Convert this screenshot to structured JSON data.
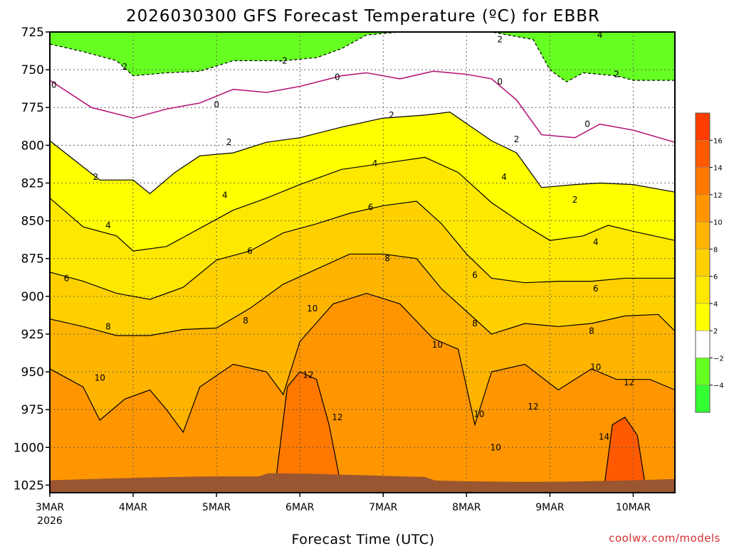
{
  "chart_data": {
    "type": "heatmap",
    "title": "2026030300 GFS Forecast Temperature (ºC) for EBBR",
    "xlabel": "Forecast Time (UTC)",
    "ylabel": "",
    "credit": "coolwx.com/models",
    "y_axis": {
      "unit": "hPa",
      "reversed": true,
      "range": [
        725,
        1030
      ],
      "ticks": [
        "725",
        "750",
        "775",
        "800",
        "825",
        "850",
        "875",
        "900",
        "925",
        "950",
        "975",
        "1000",
        "1025"
      ]
    },
    "x_axis": {
      "range_days_from_start": [
        0,
        7.5
      ],
      "ticks": [
        {
          "label": "3MAR",
          "sub": "2026",
          "day": 0
        },
        {
          "label": "4MAR",
          "sub": "",
          "day": 1
        },
        {
          "label": "5MAR",
          "sub": "",
          "day": 2
        },
        {
          "label": "6MAR",
          "sub": "",
          "day": 3
        },
        {
          "label": "7MAR",
          "sub": "",
          "day": 4
        },
        {
          "label": "8MAR",
          "sub": "",
          "day": 5
        },
        {
          "label": "9MAR",
          "sub": "",
          "day": 6
        },
        {
          "label": "10MAR",
          "sub": "",
          "day": 7
        }
      ]
    },
    "colorbar": {
      "bins": [
        {
          "from": -6,
          "to": -4,
          "color": "#33ff33"
        },
        {
          "from": -4,
          "to": -2,
          "color": "#66ff22"
        },
        {
          "from": -2,
          "to": 2,
          "color": "#ffffff"
        },
        {
          "from": 2,
          "to": 4,
          "color": "#ffff00"
        },
        {
          "from": 4,
          "to": 6,
          "color": "#ffe800"
        },
        {
          "from": 6,
          "to": 8,
          "color": "#ffd000"
        },
        {
          "from": 8,
          "to": 10,
          "color": "#ffb400"
        },
        {
          "from": 10,
          "to": 12,
          "color": "#ff9600"
        },
        {
          "from": 12,
          "to": 14,
          "color": "#ff7800"
        },
        {
          "from": 14,
          "to": 16,
          "color": "#ff5a00"
        },
        {
          "from": 16,
          "to": 18,
          "color": "#ff3c00"
        }
      ],
      "tick_labels": [
        "16",
        "14",
        "12",
        "10",
        "8",
        "6",
        "4",
        "2",
        "−2",
        "−4"
      ]
    },
    "contour_levels": [
      -4,
      -2,
      0,
      2,
      4,
      6,
      8,
      10,
      12,
      14
    ],
    "isotherms": [
      {
        "level": "-2",
        "points": [
          [
            0,
            733
          ],
          [
            0.4,
            738
          ],
          [
            0.8,
            744
          ],
          [
            1.0,
            754
          ],
          [
            1.4,
            752
          ],
          [
            1.8,
            751
          ],
          [
            2.2,
            744
          ],
          [
            2.6,
            744
          ],
          [
            2.8,
            744
          ],
          [
            3.2,
            742
          ],
          [
            3.5,
            736
          ],
          [
            3.8,
            727
          ],
          [
            4.2,
            725
          ],
          [
            5.0,
            725
          ],
          [
            5.3,
            725
          ],
          [
            5.8,
            730
          ],
          [
            6.0,
            750
          ],
          [
            6.2,
            758
          ],
          [
            6.4,
            752
          ],
          [
            6.8,
            754
          ],
          [
            7.0,
            757
          ],
          [
            7.4,
            757
          ],
          [
            7.5,
            757
          ]
        ]
      },
      {
        "level": "0",
        "points": [
          [
            0,
            757
          ],
          [
            0.5,
            775
          ],
          [
            1.0,
            782
          ],
          [
            1.4,
            776
          ],
          [
            1.8,
            772
          ],
          [
            2.2,
            763
          ],
          [
            2.6,
            765
          ],
          [
            3.0,
            761
          ],
          [
            3.5,
            754
          ],
          [
            3.8,
            752
          ],
          [
            4.2,
            756
          ],
          [
            4.6,
            751
          ],
          [
            5.0,
            753
          ],
          [
            5.3,
            756
          ],
          [
            5.6,
            770
          ],
          [
            5.9,
            793
          ],
          [
            6.3,
            795
          ],
          [
            6.6,
            786
          ],
          [
            7.0,
            790
          ],
          [
            7.5,
            798
          ]
        ]
      },
      {
        "level": "2",
        "points": [
          [
            0,
            797
          ],
          [
            0.3,
            810
          ],
          [
            0.6,
            823
          ],
          [
            1.0,
            823
          ],
          [
            1.2,
            832
          ],
          [
            1.5,
            818
          ],
          [
            1.8,
            807
          ],
          [
            2.2,
            805
          ],
          [
            2.6,
            798
          ],
          [
            3.0,
            795
          ],
          [
            3.5,
            788
          ],
          [
            4.0,
            782
          ],
          [
            4.5,
            780
          ],
          [
            4.8,
            778
          ],
          [
            5.3,
            797
          ],
          [
            5.6,
            805
          ],
          [
            5.9,
            828
          ],
          [
            6.3,
            826
          ],
          [
            6.6,
            825
          ],
          [
            7.0,
            826
          ],
          [
            7.5,
            831
          ]
        ]
      },
      {
        "level": "4",
        "points": [
          [
            0,
            835
          ],
          [
            0.4,
            854
          ],
          [
            0.8,
            860
          ],
          [
            1.0,
            870
          ],
          [
            1.4,
            867
          ],
          [
            1.8,
            855
          ],
          [
            2.2,
            843
          ],
          [
            2.6,
            835
          ],
          [
            3.0,
            826
          ],
          [
            3.5,
            816
          ],
          [
            4.0,
            812
          ],
          [
            4.5,
            808
          ],
          [
            4.9,
            818
          ],
          [
            5.3,
            838
          ],
          [
            5.7,
            853
          ],
          [
            6.0,
            863
          ],
          [
            6.4,
            860
          ],
          [
            6.7,
            853
          ],
          [
            7.0,
            857
          ],
          [
            7.5,
            863
          ]
        ]
      },
      {
        "level": "6",
        "points": [
          [
            0,
            884
          ],
          [
            0.4,
            890
          ],
          [
            0.8,
            898
          ],
          [
            1.2,
            902
          ],
          [
            1.6,
            894
          ],
          [
            2.0,
            876
          ],
          [
            2.4,
            870
          ],
          [
            2.8,
            858
          ],
          [
            3.2,
            852
          ],
          [
            3.6,
            845
          ],
          [
            4.0,
            840
          ],
          [
            4.4,
            837
          ],
          [
            4.7,
            852
          ],
          [
            5.0,
            872
          ],
          [
            5.3,
            888
          ],
          [
            5.7,
            891
          ],
          [
            6.1,
            890
          ],
          [
            6.5,
            890
          ],
          [
            6.9,
            888
          ],
          [
            7.3,
            888
          ],
          [
            7.5,
            888
          ]
        ]
      },
      {
        "level": "8",
        "points": [
          [
            0,
            915
          ],
          [
            0.4,
            920
          ],
          [
            0.8,
            926
          ],
          [
            1.2,
            926
          ],
          [
            1.6,
            922
          ],
          [
            2.0,
            921
          ],
          [
            2.4,
            908
          ],
          [
            2.8,
            892
          ],
          [
            3.2,
            882
          ],
          [
            3.6,
            872
          ],
          [
            4.0,
            872
          ],
          [
            4.4,
            875
          ],
          [
            4.7,
            895
          ],
          [
            5.0,
            910
          ],
          [
            5.3,
            925
          ],
          [
            5.7,
            918
          ],
          [
            6.1,
            920
          ],
          [
            6.5,
            918
          ],
          [
            6.9,
            913
          ],
          [
            7.3,
            912
          ],
          [
            7.5,
            923
          ]
        ]
      },
      {
        "level": "10",
        "points": [
          [
            0,
            948
          ],
          [
            0.4,
            960
          ],
          [
            0.6,
            982
          ],
          [
            0.9,
            968
          ],
          [
            1.2,
            962
          ],
          [
            1.4,
            975
          ],
          [
            1.6,
            990
          ],
          [
            1.8,
            960
          ],
          [
            2.2,
            945
          ],
          [
            2.6,
            950
          ],
          [
            2.8,
            965
          ],
          [
            3.0,
            930
          ],
          [
            3.4,
            905
          ],
          [
            3.8,
            898
          ],
          [
            4.2,
            905
          ],
          [
            4.6,
            928
          ],
          [
            4.9,
            935
          ],
          [
            5.1,
            985
          ],
          [
            5.3,
            950
          ],
          [
            5.7,
            945
          ],
          [
            6.1,
            962
          ],
          [
            6.5,
            948
          ],
          [
            6.8,
            955
          ],
          [
            7.2,
            955
          ],
          [
            7.5,
            962
          ]
        ]
      },
      {
        "level": "12",
        "points": [
          [
            2.7,
            1027
          ],
          [
            2.85,
            960
          ],
          [
            3.0,
            950
          ],
          [
            3.2,
            955
          ],
          [
            3.35,
            985
          ],
          [
            3.5,
            1027
          ]
        ]
      },
      {
        "level": "14",
        "points": [
          [
            6.65,
            1027
          ],
          [
            6.75,
            985
          ],
          [
            6.9,
            980
          ],
          [
            7.05,
            992
          ],
          [
            7.15,
            1027
          ]
        ]
      }
    ],
    "contour_labels": [
      {
        "text": "-2",
        "day": 2.8,
        "hpa": 744
      },
      {
        "text": "2",
        "day": 5.4,
        "hpa": 730
      },
      {
        "text": "4",
        "day": 6.6,
        "hpa": 727
      },
      {
        "text": "2",
        "day": 0.9,
        "hpa": 748
      },
      {
        "text": "2",
        "day": 6.8,
        "hpa": 753
      },
      {
        "text": "0",
        "day": 0.05,
        "hpa": 760
      },
      {
        "text": "0",
        "day": 2.0,
        "hpa": 773
      },
      {
        "text": "0",
        "day": 3.45,
        "hpa": 755
      },
      {
        "text": "0",
        "day": 5.4,
        "hpa": 758
      },
      {
        "text": "0",
        "day": 6.45,
        "hpa": 786
      },
      {
        "text": "2",
        "day": 0.55,
        "hpa": 821
      },
      {
        "text": "2",
        "day": 2.15,
        "hpa": 798
      },
      {
        "text": "2",
        "day": 4.1,
        "hpa": 780
      },
      {
        "text": "2",
        "day": 6.3,
        "hpa": 836
      },
      {
        "text": "2",
        "day": 5.6,
        "hpa": 796
      },
      {
        "text": "4",
        "day": 0.7,
        "hpa": 853
      },
      {
        "text": "4",
        "day": 2.1,
        "hpa": 833
      },
      {
        "text": "4",
        "day": 3.9,
        "hpa": 812
      },
      {
        "text": "4",
        "day": 5.45,
        "hpa": 821
      },
      {
        "text": "4",
        "day": 6.55,
        "hpa": 864
      },
      {
        "text": "6",
        "day": 0.2,
        "hpa": 888
      },
      {
        "text": "6",
        "day": 2.4,
        "hpa": 870
      },
      {
        "text": "6",
        "day": 3.85,
        "hpa": 841
      },
      {
        "text": "6",
        "day": 5.1,
        "hpa": 886
      },
      {
        "text": "6",
        "day": 6.55,
        "hpa": 895
      },
      {
        "text": "8",
        "day": 0.7,
        "hpa": 920
      },
      {
        "text": "8",
        "day": 2.35,
        "hpa": 916
      },
      {
        "text": "8",
        "day": 4.05,
        "hpa": 875
      },
      {
        "text": "8",
        "day": 5.1,
        "hpa": 918
      },
      {
        "text": "8",
        "day": 6.5,
        "hpa": 923
      },
      {
        "text": "10",
        "day": 0.6,
        "hpa": 954
      },
      {
        "text": "10",
        "day": 3.15,
        "hpa": 908
      },
      {
        "text": "10",
        "day": 4.65,
        "hpa": 932
      },
      {
        "text": "10",
        "day": 5.15,
        "hpa": 978
      },
      {
        "text": "10",
        "day": 6.55,
        "hpa": 947
      },
      {
        "text": "10",
        "day": 5.35,
        "hpa": 1000
      },
      {
        "text": "12",
        "day": 3.1,
        "hpa": 952
      },
      {
        "text": "12",
        "day": 3.45,
        "hpa": 980
      },
      {
        "text": "12",
        "day": 5.8,
        "hpa": 973
      },
      {
        "text": "12",
        "day": 6.95,
        "hpa": 957
      },
      {
        "text": "14",
        "day": 6.65,
        "hpa": 993
      }
    ]
  }
}
